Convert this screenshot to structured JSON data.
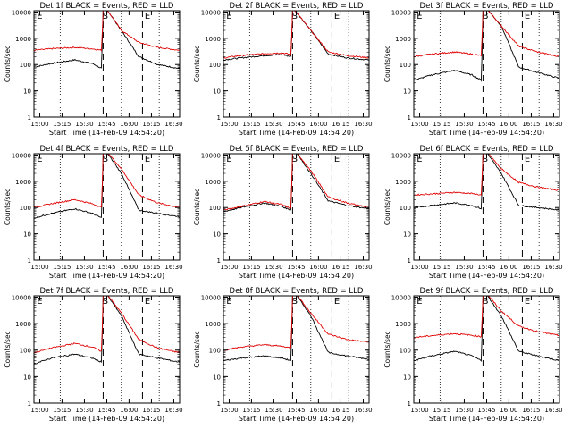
{
  "colors": {
    "events": "#000000",
    "lld": "#e00000",
    "axis": "#000000"
  },
  "chart_data": [
    {
      "type": "line",
      "title": "Det 1f BLACK = Events, RED = LLD",
      "xlabel": "Start Time (14-Feb-09 14:54:20)",
      "ylabel": "Counts/sec",
      "x_ticks": [
        "15:00",
        "15:15",
        "15:30",
        "15:45",
        "16:00",
        "16:15",
        "16:30"
      ],
      "y_ticks": [
        "1",
        "10",
        "100",
        "1000",
        "10000"
      ],
      "ylim": [
        1,
        10000
      ],
      "scale": "log",
      "markers": [
        "E",
        "S",
        "E"
      ],
      "series": [
        {
          "name": "Events",
          "values": [
            80,
            110,
            150,
            110,
            70,
            20000,
            2000,
            200,
            100,
            70
          ]
        },
        {
          "name": "LLD",
          "values": [
            350,
            400,
            450,
            400,
            350,
            20000,
            2000,
            700,
            450,
            350
          ]
        }
      ]
    },
    {
      "type": "line",
      "title": "Det 2f BLACK = Events, RED = LLD",
      "xlabel": "Start Time (14-Feb-09 14:54:20)",
      "ylabel": "Counts/sec",
      "x_ticks": [
        "15:00",
        "15:15",
        "15:30",
        "15:45",
        "16:00",
        "16:15",
        "16:30"
      ],
      "y_ticks": [
        "1",
        "10",
        "100",
        "1000",
        "10000"
      ],
      "ylim": [
        1,
        10000
      ],
      "scale": "log",
      "markers": [
        "E",
        "S",
        "E"
      ],
      "series": [
        {
          "name": "Events",
          "values": [
            150,
            180,
            220,
            240,
            200,
            15000,
            2000,
            250,
            180,
            150
          ]
        },
        {
          "name": "LLD",
          "values": [
            180,
            220,
            260,
            280,
            240,
            15000,
            2000,
            300,
            220,
            180
          ]
        }
      ]
    },
    {
      "type": "line",
      "title": "Det 3f BLACK = Events, RED = LLD",
      "xlabel": "Start Time (14-Feb-09 14:54:20)",
      "ylabel": "Counts/sec",
      "x_ticks": [
        "15:00",
        "15:15",
        "15:30",
        "15:45",
        "16:00",
        "16:15",
        "16:30"
      ],
      "y_ticks": [
        "1",
        "10",
        "100",
        "1000",
        "10000"
      ],
      "ylim": [
        1,
        10000
      ],
      "scale": "log",
      "markers": [
        "E",
        "B",
        "E"
      ],
      "series": [
        {
          "name": "Events",
          "values": [
            25,
            40,
            60,
            40,
            25,
            20000,
            3000,
            80,
            50,
            30
          ]
        },
        {
          "name": "LLD",
          "values": [
            200,
            250,
            300,
            250,
            220,
            20000,
            3000,
            500,
            300,
            200
          ]
        }
      ]
    },
    {
      "type": "line",
      "title": "Det 4f BLACK = Events, RED = LLD",
      "xlabel": "Start Time (14-Feb-09 14:54:20)",
      "ylabel": "Counts/sec",
      "x_ticks": [
        "15:00",
        "15:15",
        "15:30",
        "15:45",
        "16:00",
        "16:15",
        "16:30"
      ],
      "y_ticks": [
        "1",
        "10",
        "100",
        "1000",
        "10000"
      ],
      "ylim": [
        1,
        10000
      ],
      "scale": "log",
      "markers": [
        "E",
        "S",
        "E"
      ],
      "series": [
        {
          "name": "Events",
          "values": [
            40,
            60,
            90,
            60,
            40,
            20000,
            2000,
            80,
            60,
            45
          ]
        },
        {
          "name": "LLD",
          "values": [
            100,
            140,
            200,
            140,
            100,
            20000,
            3000,
            300,
            150,
            100
          ]
        }
      ]
    },
    {
      "type": "line",
      "title": "Det 5f BLACK = Events, RED = LLD",
      "xlabel": "Start Time (14-Feb-09 14:54:20)",
      "ylabel": "Counts/sec",
      "x_ticks": [
        "15:00",
        "15:15",
        "15:30",
        "15:45",
        "16:00",
        "16:15",
        "16:30"
      ],
      "y_ticks": [
        "1",
        "10",
        "100",
        "1000",
        "10000"
      ],
      "ylim": [
        1,
        10000
      ],
      "scale": "log",
      "markers": [
        "E",
        "S",
        "E"
      ],
      "series": [
        {
          "name": "Events",
          "values": [
            70,
            100,
            150,
            110,
            80,
            20000,
            2000,
            180,
            120,
            90
          ]
        },
        {
          "name": "LLD",
          "values": [
            80,
            110,
            170,
            130,
            90,
            20000,
            2500,
            250,
            150,
            100
          ]
        }
      ]
    },
    {
      "type": "line",
      "title": "Det 6f BLACK = Events, RED = LLD",
      "xlabel": "Start Time (14-Feb-09 14:54:20)",
      "ylabel": "Counts/sec",
      "x_ticks": [
        "15:00",
        "15:15",
        "15:30",
        "15:45",
        "16:00",
        "16:15",
        "16:30"
      ],
      "y_ticks": [
        "1",
        "10",
        "100",
        "1000",
        "10000"
      ],
      "ylim": [
        1,
        10000
      ],
      "scale": "log",
      "markers": [
        "E",
        "S",
        "E"
      ],
      "series": [
        {
          "name": "Events",
          "values": [
            100,
            120,
            150,
            120,
            90,
            20000,
            2000,
            120,
            100,
            80
          ]
        },
        {
          "name": "LLD",
          "values": [
            300,
            330,
            380,
            340,
            300,
            20000,
            3000,
            900,
            600,
            450
          ]
        }
      ]
    },
    {
      "type": "line",
      "title": "Det 7f BLACK = Events, RED = LLD",
      "xlabel": "Start Time (14-Feb-09 14:54:20)",
      "ylabel": "Counts/sec",
      "x_ticks": [
        "15:00",
        "15:15",
        "15:30",
        "15:45",
        "16:00",
        "16:15",
        "16:30"
      ],
      "y_ticks": [
        "1",
        "10",
        "100",
        "1000",
        "10000"
      ],
      "ylim": [
        1,
        10000
      ],
      "scale": "log",
      "markers": [
        "E",
        "S",
        "E"
      ],
      "series": [
        {
          "name": "Events",
          "values": [
            30,
            50,
            70,
            50,
            35,
            20000,
            2000,
            70,
            50,
            35
          ]
        },
        {
          "name": "LLD",
          "values": [
            80,
            120,
            180,
            130,
            90,
            20000,
            2500,
            250,
            120,
            80
          ]
        }
      ]
    },
    {
      "type": "line",
      "title": "Det 8f BLACK = Events, RED = LLD",
      "xlabel": "Start Time (14-Feb-09 14:54:20)",
      "ylabel": "Counts/sec",
      "x_ticks": [
        "15:00",
        "15:15",
        "15:30",
        "15:45",
        "16:00",
        "16:15",
        "16:30"
      ],
      "y_ticks": [
        "1",
        "10",
        "100",
        "1000",
        "10000"
      ],
      "ylim": [
        1,
        10000
      ],
      "scale": "log",
      "markers": [
        "E",
        "S",
        "E"
      ],
      "series": [
        {
          "name": "Events",
          "values": [
            40,
            50,
            60,
            50,
            40,
            20000,
            2000,
            80,
            60,
            45
          ]
        },
        {
          "name": "LLD",
          "values": [
            100,
            130,
            160,
            140,
            120,
            20000,
            2500,
            400,
            250,
            200
          ]
        }
      ]
    },
    {
      "type": "line",
      "title": "Det 9f BLACK = Events, RED = LLD",
      "xlabel": "Start Time (14-Feb-09 14:54:20)",
      "ylabel": "Counts/sec",
      "x_ticks": [
        "15:00",
        "15:15",
        "15:30",
        "15:45",
        "16:00",
        "16:15",
        "16:30"
      ],
      "y_ticks": [
        "1",
        "10",
        "100",
        "1000",
        "10000"
      ],
      "ylim": [
        1,
        10000
      ],
      "scale": "log",
      "markers": [
        "E",
        "B",
        "E"
      ],
      "series": [
        {
          "name": "Events",
          "values": [
            40,
            60,
            90,
            60,
            40,
            20000,
            2000,
            90,
            60,
            40
          ]
        },
        {
          "name": "LLD",
          "values": [
            300,
            350,
            420,
            360,
            320,
            20000,
            3000,
            800,
            500,
            350
          ]
        }
      ]
    }
  ]
}
